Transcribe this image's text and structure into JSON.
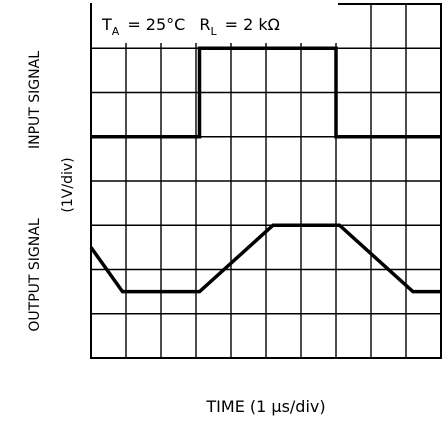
{
  "chart_data": {
    "type": "line",
    "title": "",
    "annotation": {
      "ta_symbol": "T",
      "ta_sub": "A",
      "ta_value": "=  25°C",
      "rl_symbol": "R",
      "rl_sub": "L",
      "rl_value": "=  2 kΩ"
    },
    "xlabel": "TIME (1 μs/div)",
    "ylabels": {
      "output": "OUTPUT SIGNAL",
      "input": "INPUT SIGNAL",
      "scale": "(1V/div)"
    },
    "grid": {
      "divisions_x": 10,
      "divisions_y": 8,
      "shown": true
    },
    "xlim": [
      0,
      10
    ],
    "ylim": [
      0,
      8
    ],
    "series": [
      {
        "role": "input",
        "x": [
          0,
          3.1,
          3.1,
          7.0,
          7.0,
          10
        ],
        "y": [
          5.0,
          5.0,
          7.0,
          7.0,
          5.0,
          5.0
        ]
      },
      {
        "role": "output",
        "x": [
          0,
          0.9,
          3.1,
          5.2,
          7.1,
          9.2,
          10
        ],
        "y": [
          2.5,
          1.5,
          1.5,
          3.0,
          3.0,
          1.5,
          1.5
        ]
      }
    ]
  }
}
